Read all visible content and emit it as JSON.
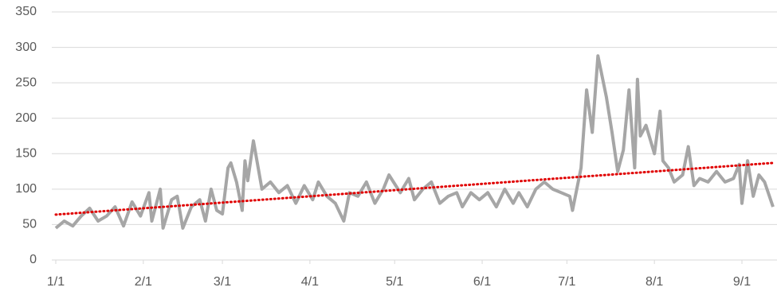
{
  "chart_data": {
    "type": "line",
    "x": [
      "1/1",
      "1/4",
      "1/7",
      "1/10",
      "1/13",
      "1/16",
      "1/19",
      "1/22",
      "1/25",
      "1/28",
      "1/31",
      "2/3",
      "2/4",
      "2/7",
      "2/8",
      "2/11",
      "2/13",
      "2/15",
      "2/18",
      "2/21",
      "2/23",
      "2/25",
      "2/27",
      "3/1",
      "3/3",
      "3/4",
      "3/6",
      "3/8",
      "3/9",
      "3/10",
      "3/12",
      "3/15",
      "3/18",
      "3/21",
      "3/24",
      "3/27",
      "3/30",
      "4/2",
      "4/4",
      "4/7",
      "4/10",
      "4/13",
      "4/15",
      "4/18",
      "4/21",
      "4/24",
      "4/27",
      "4/29",
      "5/3",
      "5/6",
      "5/8",
      "5/11",
      "5/14",
      "5/17",
      "5/20",
      "5/23",
      "5/25",
      "5/28",
      "5/31",
      "6/3",
      "6/6",
      "6/9",
      "6/12",
      "6/14",
      "6/17",
      "6/20",
      "6/23",
      "6/26",
      "6/29",
      "7/2",
      "7/3",
      "7/6",
      "7/8",
      "7/10",
      "7/12",
      "7/15",
      "7/17",
      "7/19",
      "7/21",
      "7/23",
      "7/25",
      "7/26",
      "7/27",
      "7/29",
      "8/1",
      "8/3",
      "8/4",
      "8/6",
      "8/8",
      "8/11",
      "8/13",
      "8/15",
      "8/17",
      "8/20",
      "8/23",
      "8/26",
      "8/29",
      "8/31",
      "9/1",
      "9/3",
      "9/5",
      "9/7",
      "9/9",
      "9/12"
    ],
    "series": [
      {
        "color": "#a6a6a6",
        "values": [
          45,
          55,
          48,
          62,
          73,
          55,
          62,
          75,
          48,
          82,
          62,
          95,
          55,
          100,
          45,
          85,
          90,
          45,
          75,
          85,
          55,
          100,
          70,
          65,
          130,
          137,
          110,
          70,
          140,
          112,
          168,
          100,
          110,
          95,
          105,
          80,
          105,
          85,
          110,
          90,
          80,
          55,
          95,
          90,
          110,
          80,
          100,
          120,
          95,
          115,
          85,
          100,
          110,
          80,
          90,
          95,
          75,
          95,
          85,
          95,
          75,
          100,
          80,
          95,
          75,
          100,
          110,
          100,
          95,
          90,
          70,
          130,
          240,
          180,
          288,
          230,
          180,
          125,
          155,
          240,
          130,
          255,
          175,
          190,
          150,
          210,
          140,
          130,
          110,
          120,
          160,
          105,
          115,
          110,
          125,
          110,
          115,
          135,
          80,
          140,
          90,
          120,
          110,
          75
        ]
      }
    ],
    "trendline": {
      "x": [
        "1/1",
        "9/12"
      ],
      "values": [
        64,
        137
      ],
      "color": "#e00000"
    },
    "xlim": [
      "1/1",
      "9/12"
    ],
    "xticks": [
      "1/1",
      "2/1",
      "3/1",
      "4/1",
      "5/1",
      "6/1",
      "7/1",
      "8/1",
      "9/1"
    ],
    "ylim": [
      0,
      350
    ],
    "yticks": [
      0,
      50,
      100,
      150,
      200,
      250,
      300,
      350
    ],
    "grid": true
  }
}
